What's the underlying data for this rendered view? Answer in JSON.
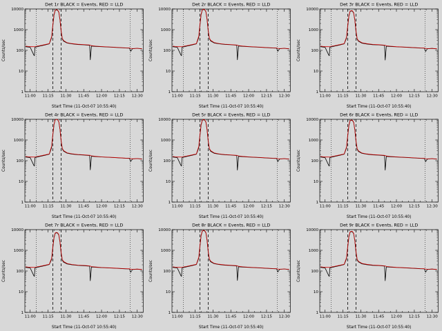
{
  "figure": {
    "background": "#d8d8d8",
    "colors": {
      "events": "#000000",
      "lld": "#cc0000",
      "axis": "#000000"
    }
  },
  "chart_data": {
    "type": "line",
    "layout": "3x3-grid",
    "yscale": "log",
    "ylim": [
      1,
      10000
    ],
    "ytick_labels": [
      "1",
      "10",
      "100",
      "1000",
      "10000"
    ],
    "ylabel": "Counts/sec",
    "xlabel": "Start Time (11-Oct-07 10:55:40)",
    "xtick_labels": [
      "11:00",
      "11:15",
      "11:30",
      "11:45",
      "12:00",
      "12:15",
      "12:30"
    ],
    "xtick_minutes": [
      0,
      15,
      30,
      45,
      60,
      75,
      90
    ],
    "xlim_minutes": [
      -4.5,
      95
    ],
    "legend": {
      "black": "Events",
      "red": "LLD"
    },
    "vlines": {
      "dashed_minutes": [
        19,
        26
      ],
      "dotted_minutes": [
        5,
        84
      ]
    },
    "x_minutes": [
      -4,
      0,
      3,
      3.5,
      4,
      8,
      12,
      16,
      18,
      19,
      20,
      21,
      22,
      23,
      24,
      25,
      26,
      27,
      28,
      31,
      35,
      40,
      45,
      50,
      50.5,
      51.5,
      55,
      60,
      70,
      80,
      83.5,
      84.5,
      86,
      90,
      94
    ],
    "panels": [
      {
        "title": "Det 1r BLACK = Events, RED = LLD",
        "events": [
          150,
          140,
          60,
          55,
          140,
          160,
          180,
          205,
          400,
          1500,
          5000,
          8500,
          9000,
          8700,
          7000,
          3000,
          800,
          350,
          280,
          225,
          205,
          190,
          185,
          175,
          35,
          160,
          155,
          150,
          140,
          130,
          128,
          90,
          120,
          125,
          118
        ],
        "lld": [
          160,
          150,
          150,
          148,
          152,
          168,
          188,
          212,
          450,
          1700,
          5400,
          8800,
          9300,
          9000,
          7300,
          3200,
          900,
          380,
          300,
          235,
          212,
          196,
          190,
          180,
          178,
          168,
          160,
          152,
          142,
          132,
          130,
          125,
          122,
          126,
          120
        ]
      },
      {
        "title": "Det 2r BLACK = Events, RED = LLD",
        "events": [
          150,
          140,
          60,
          55,
          140,
          160,
          180,
          205,
          400,
          1600,
          5200,
          8800,
          9500,
          9200,
          7300,
          3100,
          820,
          360,
          285,
          228,
          207,
          192,
          186,
          176,
          35,
          162,
          156,
          150,
          140,
          130,
          128,
          90,
          120,
          125,
          118
        ],
        "lld": [
          160,
          150,
          150,
          148,
          152,
          168,
          188,
          212,
          470,
          1800,
          5700,
          9100,
          9800,
          9500,
          7600,
          3300,
          920,
          390,
          305,
          238,
          214,
          198,
          191,
          181,
          179,
          170,
          161,
          152,
          142,
          132,
          130,
          125,
          122,
          126,
          120
        ]
      },
      {
        "title": "Det 3r BLACK = Events, RED = LLD",
        "events": [
          150,
          140,
          60,
          55,
          140,
          160,
          180,
          205,
          380,
          1400,
          4500,
          7600,
          8000,
          7800,
          6300,
          2800,
          750,
          340,
          275,
          222,
          203,
          188,
          183,
          173,
          34,
          158,
          153,
          148,
          139,
          129,
          127,
          88,
          119,
          124,
          117
        ],
        "lld": [
          160,
          150,
          150,
          148,
          152,
          168,
          188,
          212,
          430,
          1600,
          4800,
          7900,
          8300,
          8100,
          6600,
          3000,
          850,
          370,
          295,
          232,
          210,
          194,
          188,
          178,
          176,
          166,
          158,
          150,
          141,
          131,
          129,
          124,
          121,
          125,
          119
        ]
      },
      {
        "title": "Det 4r BLACK = Events, RED = LLD",
        "events": [
          150,
          140,
          60,
          55,
          140,
          160,
          180,
          205,
          420,
          1700,
          5500,
          9300,
          10000,
          9600,
          7600,
          3300,
          850,
          370,
          290,
          230,
          208,
          193,
          187,
          177,
          36,
          163,
          157,
          151,
          141,
          131,
          129,
          91,
          121,
          126,
          119
        ],
        "lld": [
          160,
          150,
          150,
          148,
          152,
          168,
          188,
          212,
          490,
          1900,
          5800,
          9500,
          10000,
          9800,
          7900,
          3500,
          950,
          400,
          310,
          240,
          215,
          199,
          192,
          182,
          180,
          171,
          162,
          153,
          143,
          133,
          131,
          126,
          123,
          127,
          121
        ]
      },
      {
        "title": "Det 5r BLACK = Events, RED = LLD",
        "events": [
          150,
          140,
          60,
          55,
          140,
          160,
          180,
          205,
          400,
          1600,
          5200,
          8800,
          9500,
          9200,
          7300,
          3100,
          820,
          360,
          285,
          228,
          207,
          192,
          186,
          176,
          35,
          162,
          156,
          150,
          140,
          130,
          128,
          90,
          120,
          125,
          118
        ],
        "lld": [
          160,
          150,
          150,
          148,
          152,
          168,
          188,
          212,
          470,
          1800,
          5700,
          9100,
          9800,
          9500,
          7600,
          3300,
          920,
          390,
          305,
          238,
          214,
          198,
          191,
          181,
          179,
          170,
          161,
          152,
          142,
          132,
          130,
          125,
          122,
          126,
          120
        ]
      },
      {
        "title": "Det 6r BLACK = Events, RED = LLD",
        "events": [
          150,
          140,
          60,
          55,
          140,
          160,
          180,
          205,
          400,
          1500,
          5000,
          8500,
          9000,
          8700,
          7000,
          3000,
          800,
          350,
          280,
          225,
          205,
          190,
          185,
          175,
          35,
          160,
          155,
          150,
          140,
          130,
          128,
          90,
          120,
          125,
          118
        ],
        "lld": [
          160,
          150,
          150,
          148,
          152,
          168,
          188,
          212,
          450,
          1700,
          5400,
          8800,
          9300,
          9000,
          7300,
          3200,
          900,
          380,
          300,
          235,
          212,
          196,
          190,
          180,
          178,
          168,
          160,
          152,
          142,
          132,
          130,
          125,
          122,
          126,
          120
        ]
      },
      {
        "title": "Det 7r BLACK = Events, RED = LLD",
        "events": [
          150,
          140,
          60,
          55,
          140,
          160,
          180,
          205,
          360,
          1300,
          4000,
          6600,
          7000,
          6800,
          5500,
          2500,
          700,
          330,
          270,
          220,
          200,
          186,
          181,
          171,
          34,
          156,
          151,
          146,
          137,
          128,
          126,
          87,
          118,
          123,
          116
        ],
        "lld": [
          160,
          150,
          150,
          148,
          152,
          168,
          188,
          212,
          410,
          1500,
          4300,
          6900,
          7300,
          7100,
          5800,
          2700,
          800,
          360,
          290,
          230,
          208,
          192,
          186,
          176,
          174,
          164,
          156,
          148,
          139,
          130,
          128,
          123,
          120,
          124,
          118
        ]
      },
      {
        "title": "Det 8r BLACK = Events, RED = LLD",
        "events": [
          150,
          140,
          60,
          55,
          140,
          160,
          180,
          205,
          400,
          1500,
          5000,
          8500,
          9000,
          8700,
          7000,
          3000,
          800,
          350,
          280,
          225,
          205,
          190,
          185,
          175,
          35,
          160,
          155,
          150,
          140,
          130,
          128,
          90,
          120,
          125,
          118
        ],
        "lld": [
          160,
          150,
          150,
          148,
          152,
          168,
          188,
          212,
          450,
          1700,
          5400,
          8800,
          9300,
          9000,
          7300,
          3200,
          900,
          380,
          300,
          235,
          212,
          196,
          190,
          180,
          178,
          168,
          160,
          152,
          142,
          132,
          130,
          125,
          122,
          126,
          120
        ]
      },
      {
        "title": "Det 9r BLACK = Events, RED = LLD",
        "events": [
          150,
          140,
          60,
          55,
          140,
          160,
          180,
          205,
          380,
          1400,
          4500,
          7600,
          8000,
          7800,
          6300,
          2800,
          750,
          340,
          275,
          222,
          203,
          188,
          183,
          173,
          34,
          158,
          153,
          148,
          139,
          129,
          127,
          88,
          119,
          124,
          117
        ],
        "lld": [
          160,
          150,
          150,
          148,
          152,
          168,
          188,
          212,
          430,
          1600,
          4800,
          7900,
          8300,
          8100,
          6600,
          3000,
          850,
          370,
          295,
          232,
          210,
          194,
          188,
          178,
          176,
          166,
          158,
          150,
          141,
          131,
          129,
          124,
          121,
          125,
          119
        ]
      }
    ]
  }
}
